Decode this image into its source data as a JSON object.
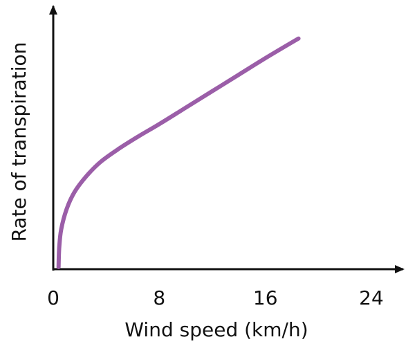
{
  "chart_data": {
    "type": "line",
    "title": "",
    "xlabel": "Wind speed (km/h)",
    "ylabel": "Rate of transpiration",
    "xlim": [
      0,
      24
    ],
    "x_ticks": [
      0,
      8,
      16,
      24
    ],
    "x_tick_labels": [
      "0",
      "8",
      "16",
      "24"
    ],
    "ylim": [
      0,
      100
    ],
    "y_ticks": [],
    "grid": false,
    "legend": "none",
    "series": [
      {
        "color": "#9b5ea8",
        "points": [
          {
            "x": 0.4,
            "y": 0.8
          },
          {
            "x": 0.45,
            "y": 8
          },
          {
            "x": 0.6,
            "y": 15
          },
          {
            "x": 1.0,
            "y": 22.5
          },
          {
            "x": 1.6,
            "y": 29
          },
          {
            "x": 2.5,
            "y": 35
          },
          {
            "x": 3.6,
            "y": 40.5
          },
          {
            "x": 5.0,
            "y": 45.5
          },
          {
            "x": 6.5,
            "y": 50.2
          },
          {
            "x": 8.0,
            "y": 54.6
          },
          {
            "x": 10.0,
            "y": 60.8
          },
          {
            "x": 12.0,
            "y": 67
          },
          {
            "x": 14.0,
            "y": 73.2
          },
          {
            "x": 16.0,
            "y": 79.4
          },
          {
            "x": 18.5,
            "y": 86.8
          }
        ]
      }
    ]
  }
}
